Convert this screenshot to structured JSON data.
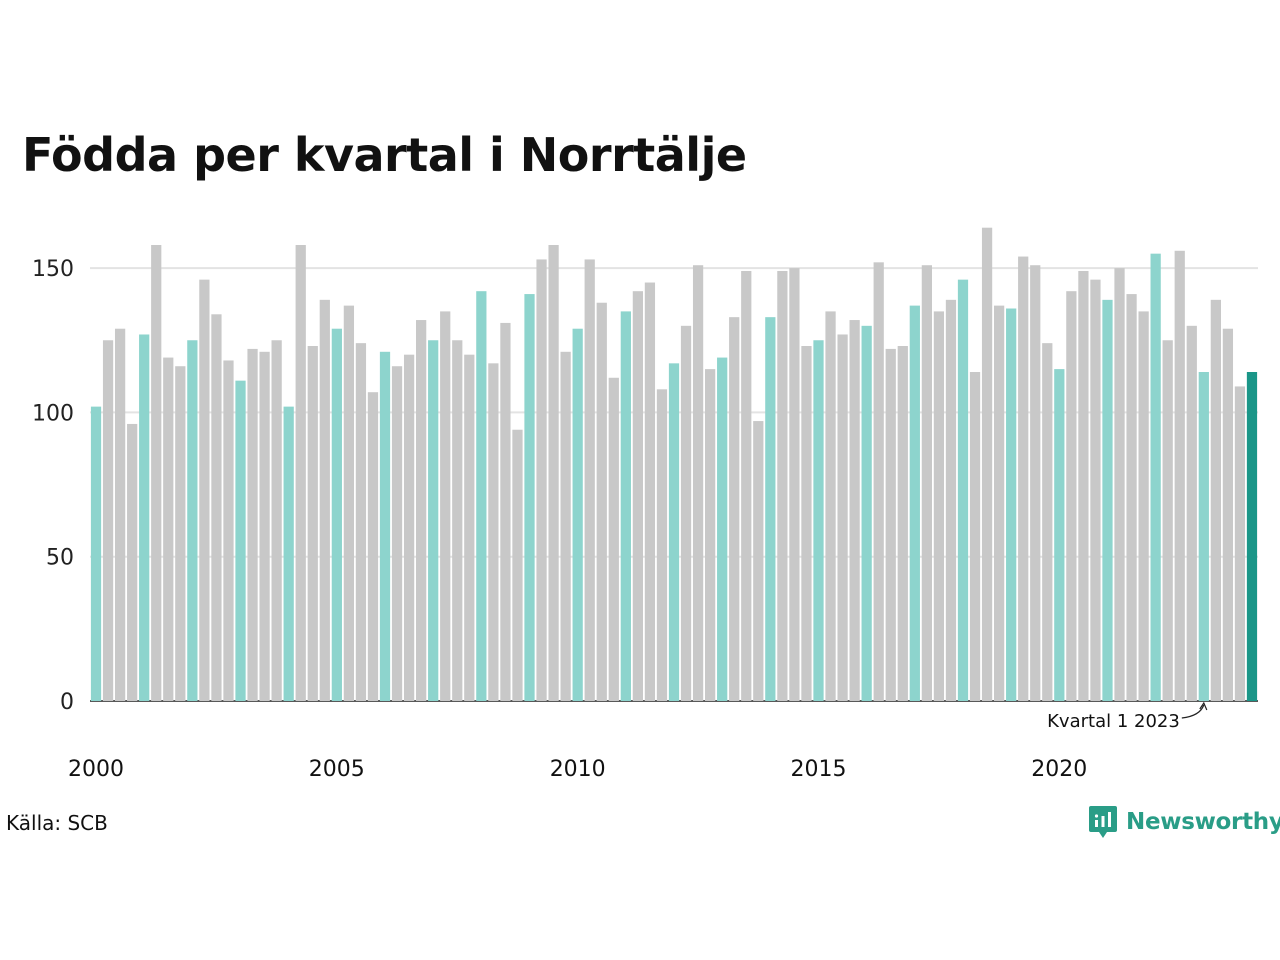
{
  "title": "Födda per kvartal i Norrtälje",
  "source": "Källa: SCB",
  "brand": "Newsworthy",
  "colors": {
    "q1": "#8dd4cd",
    "other": "#c8c8c8",
    "latest": "#1a9688",
    "grid": "#e3e3e3",
    "axis": "#222222",
    "brand": "#2a9d87"
  },
  "chart_data": {
    "type": "bar",
    "title": "Födda per kvartal i Norrtälje",
    "xlabel": "",
    "ylabel": "",
    "ylim": [
      0,
      170
    ],
    "yticks": [
      0,
      50,
      100,
      150
    ],
    "xtick_labels": [
      "2000",
      "2005",
      "2010",
      "2015",
      "2020"
    ],
    "grid": true,
    "start_year": 2000,
    "annotation": {
      "text": "Kvartal 1 2023",
      "year": 2023,
      "quarter": 1
    },
    "values": [
      102,
      125,
      129,
      96,
      127,
      158,
      119,
      116,
      125,
      146,
      134,
      118,
      111,
      122,
      121,
      125,
      102,
      158,
      123,
      139,
      129,
      137,
      124,
      107,
      121,
      116,
      120,
      132,
      125,
      135,
      125,
      120,
      142,
      117,
      131,
      94,
      141,
      153,
      158,
      121,
      129,
      153,
      138,
      112,
      135,
      142,
      145,
      108,
      117,
      130,
      151,
      115,
      119,
      133,
      149,
      97,
      133,
      149,
      150,
      123,
      125,
      135,
      127,
      132,
      130,
      152,
      122,
      123,
      137,
      151,
      135,
      139,
      146,
      114,
      164,
      137,
      136,
      154,
      151,
      124,
      115,
      142,
      149,
      146,
      139,
      150,
      141,
      135,
      155,
      125,
      156,
      130,
      114,
      139,
      129,
      109,
      114
    ]
  }
}
